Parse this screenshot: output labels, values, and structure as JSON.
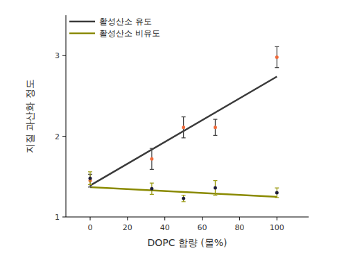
{
  "chart_data": {
    "type": "scatter",
    "x_label": "DOPC 함량 (몰%)",
    "y_label": "지질 과산화 정도",
    "xlim": [
      -13,
      117
    ],
    "xticks": [
      0,
      20,
      40,
      60,
      80,
      100
    ],
    "ylim": [
      1,
      3.5
    ],
    "yticks": [
      1,
      2,
      3
    ],
    "grid": false,
    "legend": "upper left",
    "series": [
      {
        "name": "활성산소 유도",
        "type": "line",
        "color": "#3a3a3a",
        "line_style": "solid",
        "x": [
          0,
          100
        ],
        "values": [
          1.39,
          2.74
        ]
      },
      {
        "name": "활성산소 비유도",
        "type": "line",
        "color": "#8a8a00",
        "line_style": "solid",
        "x": [
          0,
          100
        ],
        "values": [
          1.37,
          1.25
        ]
      },
      {
        "type": "scatter",
        "marker": "circle",
        "color": "#f06a3a",
        "x": [
          0,
          33,
          50,
          67,
          100
        ],
        "values": [
          1.45,
          1.72,
          2.11,
          2.11,
          2.98
        ],
        "errors": [
          0.08,
          0.13,
          0.13,
          0.1,
          0.13
        ]
      },
      {
        "type": "scatter",
        "marker": "circle",
        "color": "#1c1c3a",
        "x": [
          0,
          33,
          50,
          67,
          100
        ],
        "values": [
          1.48,
          1.35,
          1.23,
          1.36,
          1.3
        ],
        "errors": [
          0.08,
          0.07,
          0.04,
          0.09,
          0.06
        ]
      }
    ]
  }
}
